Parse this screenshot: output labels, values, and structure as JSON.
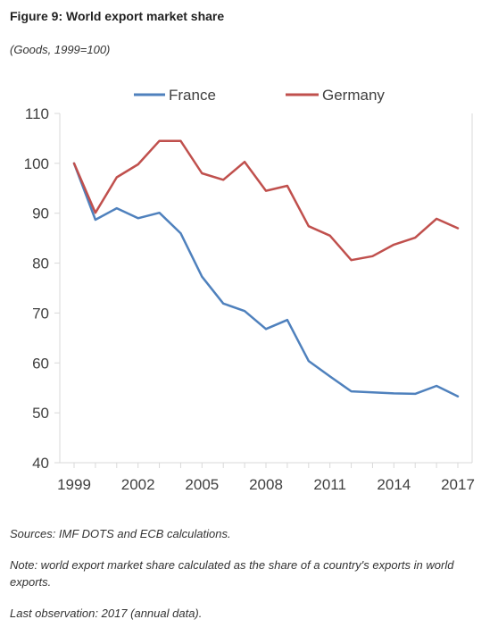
{
  "figure": {
    "title": "Figure 9: World export market share",
    "subtitle": "(Goods, 1999=100)"
  },
  "notes": {
    "sources": "Sources: IMF DOTS and ECB calculations.",
    "note": "Note: world export market share calculated as the share of a country's exports in world exports.",
    "last_observation": "Last observation: 2017 (annual data)."
  },
  "chart_data": {
    "type": "line",
    "title": "Figure 9: World export market share",
    "subtitle": "(Goods, 1999=100)",
    "x": [
      1999,
      2000,
      2001,
      2002,
      2003,
      2004,
      2005,
      2006,
      2007,
      2008,
      2009,
      2010,
      2011,
      2012,
      2013,
      2014,
      2015,
      2016,
      2017
    ],
    "x_ticks": [
      "1999",
      "2002",
      "2005",
      "2008",
      "2011",
      "2014",
      "2017"
    ],
    "y_ticks": [
      "40",
      "50",
      "60",
      "70",
      "80",
      "90",
      "100",
      "110"
    ],
    "ylim": [
      40,
      110
    ],
    "xlim": [
      1999,
      2017
    ],
    "legend_position": "top",
    "grid": false,
    "series": [
      {
        "name": "France",
        "color": "#4f81bd",
        "values": [
          100,
          88.7,
          91.0,
          89.0,
          90.1,
          86.0,
          77.3,
          71.9,
          70.4,
          66.8,
          68.6,
          60.4,
          57.3,
          54.3,
          54.1,
          53.9,
          53.8,
          55.4,
          53.3
        ]
      },
      {
        "name": "Germany",
        "color": "#c0504d",
        "values": [
          100,
          90.1,
          97.2,
          99.8,
          104.5,
          104.5,
          98.0,
          96.7,
          100.3,
          94.5,
          95.5,
          87.4,
          85.5,
          80.6,
          81.4,
          83.7,
          85.1,
          88.9,
          87.0
        ]
      }
    ]
  }
}
